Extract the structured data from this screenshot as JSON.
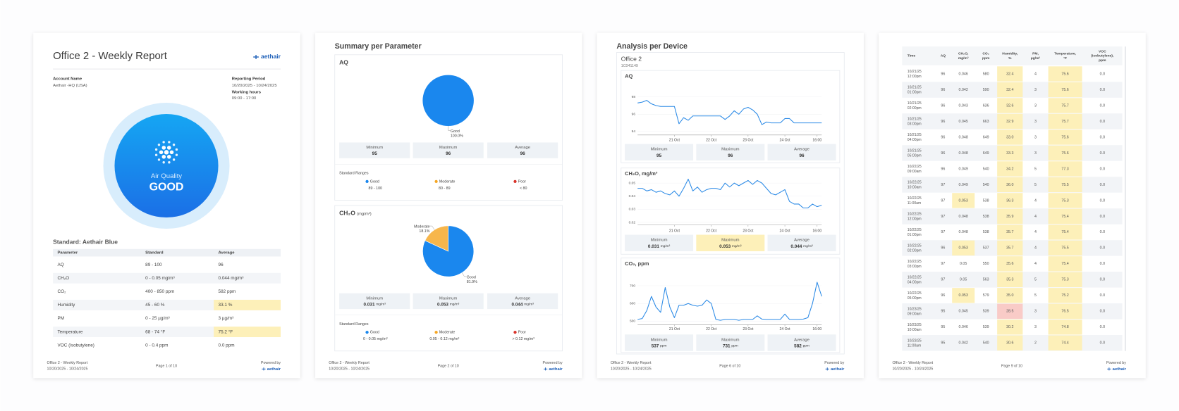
{
  "footer": {
    "report": "Office 2 - Weekly Report",
    "dates": "10/20/2025 - 10/24/2025",
    "powered": "Powered by",
    "logo": "aethair"
  },
  "report_page": {
    "title": "Office 2 - Weekly Report",
    "logo": "aethair",
    "page_label": "Page 1 of 10",
    "account": {
      "label": "Account Name",
      "value": "Aethair -HQ (USA)"
    },
    "period": {
      "label": "Reporting Period",
      "value": "10/20/2025 - 10/24/2025"
    },
    "hours": {
      "label": "Working hours",
      "value": "09:00 - 17:00"
    },
    "gauge": {
      "label": "Air Quality",
      "status": "GOOD"
    },
    "standard_title": "Standard: Aethair Blue",
    "table": {
      "headers": [
        "Parameter",
        "Standard",
        "Average"
      ],
      "rows": [
        [
          "AQ",
          "89 - 100",
          "96"
        ],
        [
          "CH₂O",
          "0 - 0.05 mg/m³",
          "0.044 mg/m³"
        ],
        [
          "CO₂",
          "400 - 850 ppm",
          "582 ppm"
        ],
        [
          "Humidity",
          "45 - 60 %",
          {
            "text": "33.1 %",
            "color": "#fdf0b9"
          }
        ],
        [
          "PM",
          "0 - 25 µg/m³",
          "3 µg/m³"
        ],
        [
          "Temperature",
          "68 - 74 °F",
          {
            "text": "75.2 °F",
            "color": "#fdf0b9"
          }
        ],
        [
          "VOC (Isobutylene)",
          "0 - 0.4 ppm",
          "0.0 ppm"
        ]
      ]
    }
  },
  "summary_page": {
    "title": "Summary per Parameter",
    "page_label": "Page 2 of 10",
    "cards": [
      {
        "chart_data": {
          "type": "pie",
          "title": "AQ",
          "categories": [
            "Good"
          ],
          "values": [
            100
          ],
          "value_labels": [
            "100.0%"
          ],
          "colors": [
            "#1a87ee"
          ]
        },
        "stats": [
          {
            "label": "Minimum",
            "value": "95"
          },
          {
            "label": "Maximum",
            "value": "96"
          },
          {
            "label": "Average",
            "value": "96"
          }
        ],
        "ranges": {
          "title": "Standard Ranges",
          "items": [
            {
              "name": "Good",
              "range": "89 - 100",
              "color": "#1a87ee"
            },
            {
              "name": "Moderate",
              "range": "80 - 89",
              "color": "#f5a623"
            },
            {
              "name": "Poor",
              "range": "< 80",
              "color": "#d9342b"
            }
          ]
        }
      },
      {
        "chart_data": {
          "type": "pie",
          "title": "CH₂O",
          "unit": "(mg/m³)",
          "categories": [
            "Good",
            "Moderate"
          ],
          "values": [
            81.9,
            18.1
          ],
          "value_labels": [
            "81.9%",
            "18.1%"
          ],
          "colors": [
            "#1a87ee",
            "#f7b64b"
          ]
        },
        "stats": [
          {
            "label": "Minimum",
            "value": "0.031",
            "unit": "mg/m³"
          },
          {
            "label": "Maximum",
            "value": "0.053",
            "unit": "mg/m³"
          },
          {
            "label": "Average",
            "value": "0.044",
            "unit": "mg/m³"
          }
        ],
        "ranges": {
          "title": "Standard Ranges",
          "items": [
            {
              "name": "Good",
              "range": "0 - 0.05 mg/m³",
              "color": "#1a87ee"
            },
            {
              "name": "Moderate",
              "range": "0.05 - 0.12 mg/m³",
              "color": "#f5a623"
            },
            {
              "name": "Poor",
              "range": "> 0.12 mg/m³",
              "color": "#d9342b"
            }
          ]
        }
      }
    ]
  },
  "device_page": {
    "title": "Analysis per Device",
    "page_label": "Page 6 of 10",
    "device": "Office 2",
    "device_id": "1C041149",
    "cards": [
      {
        "chart_data": {
          "type": "line",
          "title": "AQ",
          "color": "#2b8ae6",
          "categories": [
            null,
            null,
            null,
            null,
            null,
            null,
            null,
            null,
            "21 Oct",
            null,
            null,
            null,
            null,
            null,
            null,
            null,
            "22 Oct",
            null,
            null,
            null,
            null,
            null,
            null,
            null,
            "23 Oct",
            null,
            null,
            null,
            null,
            null,
            null,
            null,
            "24 Oct",
            null,
            null,
            null,
            null,
            null,
            null,
            "16:00",
            null
          ],
          "values": [
            97.3,
            97.4,
            97.6,
            97.2,
            97.0,
            96.9,
            96.9,
            96.9,
            96.9,
            94.9,
            95.6,
            95.3,
            95.8,
            95.8,
            95.8,
            95.8,
            95.8,
            95.8,
            95.8,
            95.4,
            95.8,
            96.4,
            96.0,
            96.6,
            96.8,
            96.5,
            96.0,
            94.8,
            95.1,
            95.0,
            95.0,
            95.0,
            95.5,
            95.5,
            95.0,
            95.0,
            95.0,
            95.0,
            95.0,
            95.0,
            95.0
          ],
          "ylim": [
            93.6,
            98.8
          ],
          "yticks": [
            94,
            96,
            98
          ]
        },
        "stats": [
          {
            "label": "Minimum",
            "value": "95"
          },
          {
            "label": "Maximum",
            "value": "96"
          },
          {
            "label": "Average",
            "value": "96"
          }
        ]
      },
      {
        "chart_data": {
          "type": "line",
          "title": "CH₂O, mg/m³",
          "color": "#2b8ae6",
          "categories": [
            null,
            null,
            null,
            null,
            null,
            null,
            null,
            null,
            "21 Oct",
            null,
            null,
            null,
            null,
            null,
            null,
            null,
            "22 Oct",
            null,
            null,
            null,
            null,
            null,
            null,
            null,
            "23 Oct",
            null,
            null,
            null,
            null,
            null,
            null,
            null,
            "24 Oct",
            null,
            null,
            null,
            null,
            null,
            null,
            "16:00",
            null
          ],
          "values": [
            0.046,
            0.046,
            0.044,
            0.045,
            0.043,
            0.044,
            0.042,
            0.041,
            0.044,
            0.04,
            0.046,
            0.053,
            0.044,
            0.047,
            0.043,
            0.045,
            0.046,
            0.046,
            0.045,
            0.05,
            0.047,
            0.05,
            0.048,
            0.05,
            0.052,
            0.049,
            0.052,
            0.05,
            0.046,
            0.042,
            0.041,
            0.043,
            0.045,
            0.036,
            0.034,
            0.034,
            0.031,
            0.031,
            0.034,
            0.032,
            0.033
          ],
          "ylim": [
            0.018,
            0.0535
          ],
          "yticks": [
            0.02,
            0.03,
            0.04,
            0.05
          ]
        },
        "stats": [
          {
            "label": "Minimum",
            "value": "0.031",
            "unit": "mg/m³"
          },
          {
            "label": "Maximum",
            "value": "0.053",
            "unit": "mg/m³",
            "color": "#fdf0b9"
          },
          {
            "label": "Average",
            "value": "0.044",
            "unit": "mg/m³"
          }
        ]
      },
      {
        "chart_data": {
          "type": "line",
          "title": "CO₂, ppm",
          "color": "#2b8ae6",
          "categories": [
            null,
            null,
            null,
            null,
            null,
            null,
            null,
            null,
            "21 Oct",
            null,
            null,
            null,
            null,
            null,
            null,
            null,
            "22 Oct",
            null,
            null,
            null,
            null,
            null,
            null,
            null,
            "23 Oct",
            null,
            null,
            null,
            null,
            null,
            null,
            null,
            "24 Oct",
            null,
            null,
            null,
            null,
            null,
            null,
            "16:00",
            null
          ],
          "values": [
            510,
            515,
            560,
            640,
            580,
            550,
            690,
            580,
            520,
            590,
            590,
            600,
            590,
            585,
            590,
            620,
            600,
            510,
            505,
            510,
            510,
            510,
            505,
            510,
            510,
            510,
            530,
            512,
            510,
            510,
            510,
            510,
            540,
            510,
            510,
            510,
            512,
            520,
            600,
            720,
            640
          ],
          "ylim": [
            480,
            755
          ],
          "yticks": [
            500,
            600,
            700
          ]
        },
        "stats": [
          {
            "label": "Minimum",
            "value": "537",
            "unit": "ppm"
          },
          {
            "label": "Maximum",
            "value": "731",
            "unit": "ppm"
          },
          {
            "label": "Average",
            "value": "582",
            "unit": "ppm"
          }
        ]
      }
    ]
  },
  "data_page": {
    "page_label": "Page 9 of 10",
    "headers": [
      [
        "Time"
      ],
      [
        "AQ"
      ],
      [
        "CH₂O,",
        "mg/m³"
      ],
      [
        "CO₂",
        "ppm"
      ],
      [
        "Humidity,",
        "%"
      ],
      [
        "PM,",
        "µg/m³"
      ],
      [
        "Temperature,",
        "°F"
      ],
      [
        "VOC",
        "(Isobutylene),",
        "ppm"
      ]
    ],
    "rows": [
      [
        [
          "10/21/25",
          "12:00pm"
        ],
        "96",
        "0.046",
        "580",
        {
          "text": "32.4",
          "color": "#fdf0b9"
        },
        "4",
        {
          "text": "75.6",
          "color": "#fdf0b9"
        },
        "0.0"
      ],
      [
        [
          "10/21/25",
          "01:00pm"
        ],
        "96",
        "0.042",
        "590",
        {
          "text": "32.4",
          "color": "#fdf0b9"
        },
        "3",
        {
          "text": "75.6",
          "color": "#fdf0b9"
        },
        "0.0"
      ],
      [
        [
          "10/21/25",
          "02:00pm"
        ],
        "96",
        "0.043",
        "636",
        {
          "text": "32.6",
          "color": "#fdf0b9"
        },
        "3",
        {
          "text": "75.7",
          "color": "#fdf0b9"
        },
        "0.0"
      ],
      [
        [
          "10/21/25",
          "03:00pm"
        ],
        "96",
        "0.045",
        "663",
        {
          "text": "32.9",
          "color": "#fdf0b9"
        },
        "3",
        {
          "text": "75.7",
          "color": "#fdf0b9"
        },
        "0.0"
      ],
      [
        [
          "10/21/25",
          "04:00pm"
        ],
        "96",
        "0.048",
        "649",
        {
          "text": "33.0",
          "color": "#fdf0b9"
        },
        "3",
        {
          "text": "75.6",
          "color": "#fdf0b9"
        },
        "0.0"
      ],
      [
        [
          "10/21/25",
          "05:00pm"
        ],
        "96",
        "0.048",
        "649",
        {
          "text": "33.3",
          "color": "#fdf0b9"
        },
        "3",
        {
          "text": "75.6",
          "color": "#fdf0b9"
        },
        "0.0"
      ],
      [
        [
          "10/22/25",
          "09:00am"
        ],
        "96",
        "0.049",
        "540",
        {
          "text": "34.2",
          "color": "#fdf0b9"
        },
        "5",
        {
          "text": "77.3",
          "color": "#fdf0b9"
        },
        "0.0"
      ],
      [
        [
          "10/22/25",
          "10:00am"
        ],
        "97",
        "0.049",
        "540",
        {
          "text": "36.0",
          "color": "#fdf0b9"
        },
        "5",
        {
          "text": "75.5",
          "color": "#fdf0b9"
        },
        "0.0"
      ],
      [
        [
          "10/22/25",
          "11:00am"
        ],
        "97",
        {
          "text": "0.053",
          "color": "#fdf0b9"
        },
        "538",
        {
          "text": "36.3",
          "color": "#fdf0b9"
        },
        "4",
        {
          "text": "75.3",
          "color": "#fdf0b9"
        },
        "0.0"
      ],
      [
        [
          "10/22/25",
          "12:00pm"
        ],
        "97",
        "0.048",
        "538",
        {
          "text": "35.9",
          "color": "#fdf0b9"
        },
        "4",
        {
          "text": "75.4",
          "color": "#fdf0b9"
        },
        "0.0"
      ],
      [
        [
          "10/22/25",
          "01:00pm"
        ],
        "97",
        "0.048",
        "538",
        {
          "text": "35.7",
          "color": "#fdf0b9"
        },
        "4",
        {
          "text": "75.4",
          "color": "#fdf0b9"
        },
        "0.0"
      ],
      [
        [
          "10/22/25",
          "02:00pm"
        ],
        "96",
        {
          "text": "0.053",
          "color": "#fdf0b9"
        },
        "537",
        {
          "text": "35.7",
          "color": "#fdf0b9"
        },
        "4",
        {
          "text": "75.5",
          "color": "#fdf0b9"
        },
        "0.0"
      ],
      [
        [
          "10/22/25",
          "03:00pm"
        ],
        "97",
        "0.05",
        "550",
        {
          "text": "35.6",
          "color": "#fdf0b9"
        },
        "4",
        {
          "text": "75.4",
          "color": "#fdf0b9"
        },
        "0.0"
      ],
      [
        [
          "10/22/25",
          "04:00pm"
        ],
        "97",
        "0.05",
        "563",
        {
          "text": "35.3",
          "color": "#fdf0b9"
        },
        "5",
        {
          "text": "75.3",
          "color": "#fdf0b9"
        },
        "0.0"
      ],
      [
        [
          "10/22/25",
          "05:00pm"
        ],
        "96",
        {
          "text": "0.053",
          "color": "#fdf0b9"
        },
        "579",
        {
          "text": "35.0",
          "color": "#fdf0b9"
        },
        "5",
        {
          "text": "75.2",
          "color": "#fdf0b9"
        },
        "0.0"
      ],
      [
        [
          "10/23/25",
          "09:00am"
        ],
        "95",
        "0.045",
        "539",
        {
          "text": "28.5",
          "color": "#f9cbc7"
        },
        "3",
        {
          "text": "76.5",
          "color": "#fdf0b9"
        },
        "0.0"
      ],
      [
        [
          "10/23/25",
          "10:00am"
        ],
        "95",
        "0.046",
        "539",
        {
          "text": "30.2",
          "color": "#fdf0b9"
        },
        "3",
        {
          "text": "74.8",
          "color": "#fdf0b9"
        },
        "0.0"
      ],
      [
        [
          "10/23/25",
          "11:00am"
        ],
        "95",
        "0.042",
        "540",
        {
          "text": "30.6",
          "color": "#fdf0b9"
        },
        "2",
        {
          "text": "74.4",
          "color": "#fdf0b9"
        },
        "0.0"
      ]
    ]
  }
}
